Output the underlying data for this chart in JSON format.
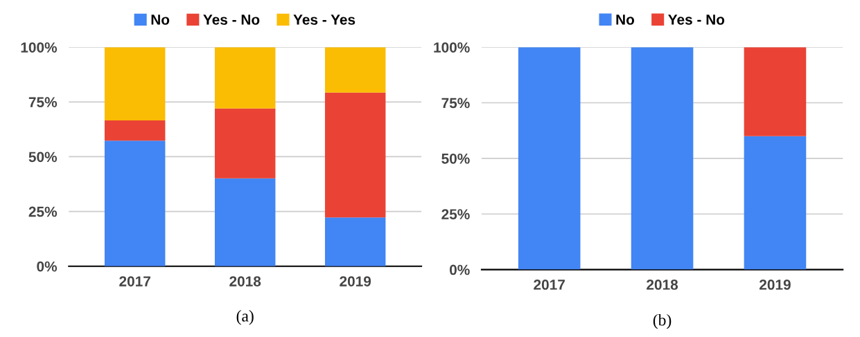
{
  "chart_data": [
    {
      "type": "bar",
      "stacked": true,
      "categories": [
        "2017",
        "2018",
        "2019"
      ],
      "series": [
        {
          "name": "No",
          "color": "#4285f4",
          "values": [
            57.3,
            40.1,
            22.3
          ]
        },
        {
          "name": "Yes - No",
          "color": "#ea4335",
          "values": [
            9.3,
            31.9,
            57.0
          ]
        },
        {
          "name": "Yes - Yes",
          "color": "#fbbc04",
          "values": [
            33.4,
            28.0,
            20.7
          ]
        }
      ],
      "ylim": [
        0,
        100
      ],
      "yticks": [
        {
          "value": 0,
          "label": "0%"
        },
        {
          "value": 25,
          "label": "25%"
        },
        {
          "value": 50,
          "label": "50%"
        },
        {
          "value": 75,
          "label": "75%"
        },
        {
          "value": 100,
          "label": "100%"
        }
      ],
      "grid": "y",
      "legend": "top",
      "annotations": [
        "(a)"
      ]
    },
    {
      "type": "bar",
      "stacked": true,
      "categories": [
        "2017",
        "2018",
        "2019"
      ],
      "series": [
        {
          "name": "No",
          "color": "#4285f4",
          "values": [
            100,
            100,
            60
          ]
        },
        {
          "name": "Yes - No",
          "color": "#ea4335",
          "values": [
            0,
            0,
            40
          ]
        }
      ],
      "ylim": [
        0,
        100
      ],
      "yticks": [
        {
          "value": 0,
          "label": "0%"
        },
        {
          "value": 25,
          "label": "25%"
        },
        {
          "value": 50,
          "label": "50%"
        },
        {
          "value": 75,
          "label": "75%"
        },
        {
          "value": 100,
          "label": "100%"
        }
      ],
      "grid": "y",
      "legend": "top",
      "annotations": [
        "(b)"
      ]
    }
  ]
}
